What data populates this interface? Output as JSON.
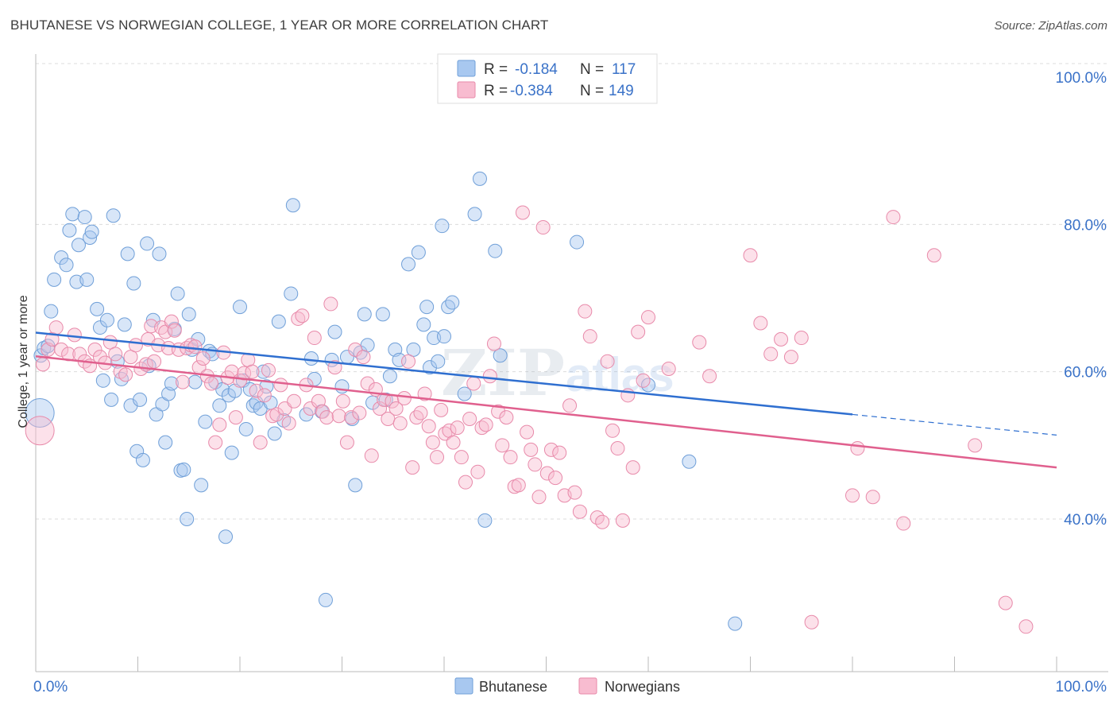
{
  "header": {
    "title": "BHUTANESE VS NORWEGIAN COLLEGE, 1 YEAR OR MORE CORRELATION CHART",
    "source": "Source: ZipAtlas.com"
  },
  "legend_top": {
    "rows": [
      {
        "r_label": "R =",
        "r_value": "-0.184",
        "n_label": "N =",
        "n_value": "117"
      },
      {
        "r_label": "R =",
        "r_value": "-0.384",
        "n_label": "N =",
        "n_value": "149"
      }
    ]
  },
  "watermark": {
    "zip": "ZIP",
    "atlas": "atlas"
  },
  "colors": {
    "bhutanese_fill": "#a8c8f0",
    "bhutanese_stroke": "#6f9fd8",
    "bhutanese_line": "#2f6fd0",
    "norwegians_fill": "#f8bcd0",
    "norwegians_stroke": "#e88aaa",
    "norwegians_line": "#e0608e",
    "tick_label": "#3a72c8",
    "grid": "#dcdcdc"
  },
  "chart_data": {
    "type": "scatter",
    "title": "BHUTANESE VS NORWEGIAN COLLEGE, 1 YEAR OR MORE CORRELATION CHART",
    "xlabel": "",
    "ylabel": "College, 1 year or more",
    "xlim": [
      0,
      100
    ],
    "ylim": [
      20,
      100
    ],
    "x_tick_labels": [
      "0.0%",
      "100.0%"
    ],
    "y_tick_labels": [
      "40.0%",
      "60.0%",
      "80.0%",
      "100.0%"
    ],
    "y_ticks": [
      40,
      60,
      80,
      100
    ],
    "grid": true,
    "legend_placement": "bottom-center",
    "series": [
      {
        "name": "Bhutanese",
        "r": -0.184,
        "n": 117,
        "trend": {
          "x": [
            0,
            80,
            100
          ],
          "y": [
            65.3,
            54.2,
            51.4
          ],
          "dashed_from": 80
        },
        "points": [
          [
            0.5,
            62.2
          ],
          [
            0.8,
            63.2
          ],
          [
            1.2,
            63.5
          ],
          [
            1.5,
            68.2
          ],
          [
            1.8,
            72.5
          ],
          [
            2.5,
            75.5
          ],
          [
            3.0,
            74.5
          ],
          [
            3.3,
            79.2
          ],
          [
            3.6,
            81.4
          ],
          [
            4.0,
            72.2
          ],
          [
            4.2,
            77.2
          ],
          [
            4.8,
            81.0
          ],
          [
            5.0,
            72.5
          ],
          [
            5.3,
            78.2
          ],
          [
            5.5,
            79.0
          ],
          [
            6.0,
            68.5
          ],
          [
            6.3,
            66.0
          ],
          [
            6.6,
            58.8
          ],
          [
            7.0,
            67.0
          ],
          [
            7.4,
            56.2
          ],
          [
            7.6,
            81.2
          ],
          [
            8.0,
            61.4
          ],
          [
            8.4,
            59.0
          ],
          [
            8.7,
            66.4
          ],
          [
            9.0,
            76.0
          ],
          [
            9.3,
            55.4
          ],
          [
            9.6,
            72.0
          ],
          [
            9.9,
            49.2
          ],
          [
            10.2,
            56.2
          ],
          [
            10.5,
            48.0
          ],
          [
            10.9,
            77.4
          ],
          [
            11.1,
            60.8
          ],
          [
            11.5,
            67.0
          ],
          [
            11.8,
            54.2
          ],
          [
            12.1,
            76.0
          ],
          [
            12.4,
            55.6
          ],
          [
            12.7,
            50.4
          ],
          [
            13.0,
            57.0
          ],
          [
            13.3,
            58.4
          ],
          [
            13.6,
            65.8
          ],
          [
            13.9,
            70.6
          ],
          [
            14.2,
            46.6
          ],
          [
            14.5,
            46.7
          ],
          [
            14.8,
            40.0
          ],
          [
            15.0,
            67.8
          ],
          [
            15.3,
            63.0
          ],
          [
            15.6,
            58.6
          ],
          [
            15.9,
            64.4
          ],
          [
            16.2,
            44.6
          ],
          [
            16.6,
            53.2
          ],
          [
            17.0,
            62.8
          ],
          [
            17.3,
            62.4
          ],
          [
            17.6,
            58.6
          ],
          [
            18.0,
            55.4
          ],
          [
            18.3,
            57.6
          ],
          [
            18.6,
            37.6
          ],
          [
            18.9,
            56.8
          ],
          [
            19.2,
            49.0
          ],
          [
            19.5,
            57.4
          ],
          [
            20.0,
            68.8
          ],
          [
            20.3,
            58.8
          ],
          [
            20.6,
            52.2
          ],
          [
            21.0,
            57.6
          ],
          [
            21.3,
            55.4
          ],
          [
            21.6,
            55.8
          ],
          [
            22.0,
            55.0
          ],
          [
            22.3,
            60.0
          ],
          [
            22.6,
            58.0
          ],
          [
            23.0,
            55.8
          ],
          [
            23.4,
            51.6
          ],
          [
            23.8,
            66.8
          ],
          [
            24.3,
            53.4
          ],
          [
            25.0,
            70.6
          ],
          [
            25.2,
            82.6
          ],
          [
            26.5,
            54.2
          ],
          [
            27.0,
            61.8
          ],
          [
            27.3,
            59.0
          ],
          [
            28.0,
            54.6
          ],
          [
            28.4,
            29.0
          ],
          [
            29.0,
            61.6
          ],
          [
            29.3,
            65.4
          ],
          [
            30.0,
            58.0
          ],
          [
            30.5,
            62.0
          ],
          [
            31.0,
            53.6
          ],
          [
            31.3,
            44.6
          ],
          [
            31.8,
            62.6
          ],
          [
            32.2,
            67.8
          ],
          [
            32.5,
            63.6
          ],
          [
            33.0,
            55.8
          ],
          [
            34.0,
            67.8
          ],
          [
            34.3,
            56.2
          ],
          [
            34.7,
            59.4
          ],
          [
            35.2,
            63.0
          ],
          [
            35.6,
            61.6
          ],
          [
            36.5,
            74.6
          ],
          [
            37.0,
            63.0
          ],
          [
            37.5,
            76.2
          ],
          [
            38.0,
            66.4
          ],
          [
            38.3,
            68.8
          ],
          [
            38.6,
            60.6
          ],
          [
            39.0,
            64.6
          ],
          [
            39.4,
            61.4
          ],
          [
            39.8,
            79.8
          ],
          [
            40.0,
            64.8
          ],
          [
            40.4,
            68.8
          ],
          [
            40.8,
            69.4
          ],
          [
            42.0,
            57.0
          ],
          [
            43.0,
            81.4
          ],
          [
            43.5,
            86.2
          ],
          [
            44.0,
            39.8
          ],
          [
            45.0,
            76.4
          ],
          [
            45.5,
            62.2
          ],
          [
            53.0,
            77.6
          ],
          [
            60.0,
            58.2
          ],
          [
            64.0,
            47.8
          ],
          [
            68.5,
            25.8
          ],
          [
            0.4,
            54.4
          ]
        ]
      },
      {
        "name": "Norwegians",
        "r": -0.384,
        "n": 149,
        "trend": {
          "x": [
            0,
            100
          ],
          "y": [
            62.1,
            47.0
          ]
        },
        "points": [
          [
            0.4,
            52.0
          ],
          [
            0.7,
            61.0
          ],
          [
            1.2,
            63.0
          ],
          [
            1.6,
            64.4
          ],
          [
            2.0,
            66.0
          ],
          [
            2.5,
            63.0
          ],
          [
            3.2,
            62.4
          ],
          [
            3.8,
            65.0
          ],
          [
            4.3,
            62.4
          ],
          [
            4.8,
            61.4
          ],
          [
            5.3,
            60.8
          ],
          [
            5.8,
            63.0
          ],
          [
            6.3,
            62.0
          ],
          [
            6.8,
            61.2
          ],
          [
            7.3,
            64.0
          ],
          [
            7.8,
            62.4
          ],
          [
            8.3,
            60.0
          ],
          [
            8.8,
            59.6
          ],
          [
            9.3,
            62.0
          ],
          [
            9.8,
            63.6
          ],
          [
            10.3,
            60.4
          ],
          [
            10.8,
            61.0
          ],
          [
            11.0,
            64.4
          ],
          [
            11.3,
            66.2
          ],
          [
            11.6,
            61.4
          ],
          [
            12.0,
            63.6
          ],
          [
            12.3,
            66.0
          ],
          [
            12.7,
            65.4
          ],
          [
            13.0,
            63.2
          ],
          [
            13.3,
            66.8
          ],
          [
            13.6,
            65.6
          ],
          [
            14.0,
            63.0
          ],
          [
            14.4,
            58.6
          ],
          [
            14.8,
            63.2
          ],
          [
            15.2,
            63.6
          ],
          [
            15.6,
            63.4
          ],
          [
            16.0,
            60.6
          ],
          [
            16.4,
            61.8
          ],
          [
            16.8,
            59.4
          ],
          [
            17.2,
            58.4
          ],
          [
            17.6,
            50.4
          ],
          [
            18.0,
            52.8
          ],
          [
            18.4,
            62.6
          ],
          [
            18.8,
            59.2
          ],
          [
            19.2,
            60.0
          ],
          [
            19.6,
            53.8
          ],
          [
            20.0,
            58.8
          ],
          [
            20.4,
            59.8
          ],
          [
            20.8,
            61.6
          ],
          [
            21.2,
            60.0
          ],
          [
            21.6,
            57.4
          ],
          [
            22.0,
            50.4
          ],
          [
            22.4,
            56.8
          ],
          [
            22.8,
            60.2
          ],
          [
            23.2,
            54.0
          ],
          [
            23.6,
            54.2
          ],
          [
            24.0,
            58.2
          ],
          [
            24.4,
            55.0
          ],
          [
            24.8,
            53.0
          ],
          [
            25.3,
            56.0
          ],
          [
            25.7,
            67.2
          ],
          [
            26.1,
            67.6
          ],
          [
            26.5,
            58.2
          ],
          [
            26.9,
            55.0
          ],
          [
            27.3,
            64.6
          ],
          [
            27.7,
            56.0
          ],
          [
            28.1,
            54.6
          ],
          [
            28.5,
            53.8
          ],
          [
            28.9,
            69.2
          ],
          [
            29.3,
            60.6
          ],
          [
            29.7,
            54.0
          ],
          [
            30.1,
            56.0
          ],
          [
            30.5,
            50.4
          ],
          [
            30.9,
            53.8
          ],
          [
            31.3,
            63.0
          ],
          [
            31.7,
            54.4
          ],
          [
            32.1,
            62.0
          ],
          [
            32.5,
            58.4
          ],
          [
            32.9,
            48.6
          ],
          [
            33.3,
            57.6
          ],
          [
            33.7,
            55.0
          ],
          [
            34.1,
            56.2
          ],
          [
            34.5,
            53.6
          ],
          [
            34.9,
            56.0
          ],
          [
            35.3,
            55.0
          ],
          [
            35.7,
            53.0
          ],
          [
            36.1,
            56.4
          ],
          [
            36.5,
            61.4
          ],
          [
            36.9,
            47.0
          ],
          [
            37.3,
            53.8
          ],
          [
            37.7,
            54.4
          ],
          [
            38.1,
            57.0
          ],
          [
            38.5,
            52.6
          ],
          [
            38.9,
            50.4
          ],
          [
            39.3,
            48.4
          ],
          [
            39.7,
            54.8
          ],
          [
            40.1,
            51.6
          ],
          [
            40.5,
            52.0
          ],
          [
            40.9,
            50.4
          ],
          [
            41.3,
            52.4
          ],
          [
            41.7,
            48.4
          ],
          [
            42.1,
            45.0
          ],
          [
            42.5,
            53.6
          ],
          [
            42.9,
            58.4
          ],
          [
            43.3,
            46.4
          ],
          [
            43.7,
            52.4
          ],
          [
            44.1,
            52.8
          ],
          [
            44.5,
            59.4
          ],
          [
            44.9,
            63.8
          ],
          [
            45.3,
            54.6
          ],
          [
            45.7,
            50.0
          ],
          [
            46.1,
            53.8
          ],
          [
            46.5,
            48.4
          ],
          [
            46.9,
            44.4
          ],
          [
            47.3,
            44.6
          ],
          [
            47.7,
            81.6
          ],
          [
            48.1,
            51.8
          ],
          [
            48.5,
            49.4
          ],
          [
            48.9,
            47.4
          ],
          [
            49.3,
            43.0
          ],
          [
            49.7,
            79.6
          ],
          [
            50.1,
            46.2
          ],
          [
            50.5,
            49.4
          ],
          [
            50.9,
            45.6
          ],
          [
            51.3,
            49.0
          ],
          [
            51.8,
            43.2
          ],
          [
            52.3,
            55.4
          ],
          [
            52.8,
            43.6
          ],
          [
            53.3,
            41.0
          ],
          [
            53.8,
            68.2
          ],
          [
            54.3,
            64.8
          ],
          [
            55.0,
            40.2
          ],
          [
            55.5,
            39.6
          ],
          [
            56.0,
            61.4
          ],
          [
            56.5,
            52.0
          ],
          [
            57.0,
            49.6
          ],
          [
            57.5,
            39.8
          ],
          [
            58.0,
            56.8
          ],
          [
            58.5,
            47.0
          ],
          [
            59.0,
            65.4
          ],
          [
            59.5,
            58.8
          ],
          [
            60.0,
            67.4
          ],
          [
            62.0,
            60.4
          ],
          [
            65.0,
            64.0
          ],
          [
            66.0,
            59.4
          ],
          [
            70.0,
            75.8
          ],
          [
            71.0,
            66.6
          ],
          [
            72.0,
            62.4
          ],
          [
            73.0,
            64.4
          ],
          [
            74.0,
            62.0
          ],
          [
            75.0,
            64.6
          ],
          [
            76.0,
            26.0
          ],
          [
            80.0,
            43.2
          ],
          [
            80.5,
            49.6
          ],
          [
            82.0,
            43.0
          ],
          [
            84.0,
            81.0
          ],
          [
            85.0,
            39.4
          ],
          [
            88.0,
            75.8
          ],
          [
            92.0,
            50.0
          ],
          [
            95.0,
            28.6
          ],
          [
            97.0,
            25.4
          ]
        ]
      }
    ]
  },
  "bottom_legend": {
    "items": [
      "Bhutanese",
      "Norwegians"
    ]
  }
}
